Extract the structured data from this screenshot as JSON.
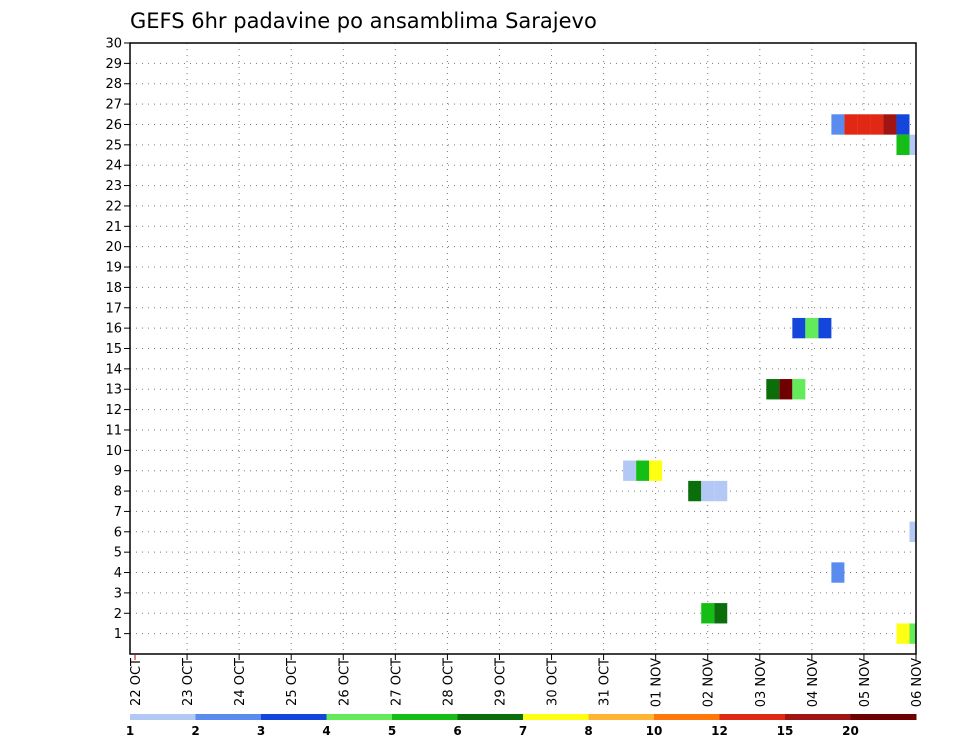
{
  "chart_data": {
    "type": "heatmap",
    "title": "GEFS 6hr padavine po ansamblima Sarajevo",
    "xlabel": "",
    "ylabel": "",
    "x_ticks": [
      "22 OCT",
      "23 OCT",
      "24 OCT",
      "25 OCT",
      "26 OCT",
      "27 OCT",
      "28 OCT",
      "29 OCT",
      "30 OCT",
      "31 OCT",
      "01 NOV",
      "02 NOV",
      "03 NOV",
      "04 NOV",
      "05 NOV",
      "06 NOV"
    ],
    "xlim_days": [
      0,
      15
    ],
    "ylim": [
      0,
      30
    ],
    "y_ticks": [
      1,
      2,
      3,
      4,
      5,
      6,
      7,
      8,
      9,
      10,
      11,
      12,
      13,
      14,
      15,
      16,
      17,
      18,
      19,
      20,
      21,
      22,
      23,
      24,
      25,
      26,
      27,
      28,
      29,
      30
    ],
    "grid": true,
    "colorbar": {
      "labels": [
        "1",
        "2",
        "3",
        "4",
        "5",
        "6",
        "7",
        "8",
        "10",
        "12",
        "15",
        "20"
      ],
      "colors": [
        "#b4c8f5",
        "#5a8cf0",
        "#1446dc",
        "#64eb5a",
        "#14be14",
        "#0a6e0a",
        "#ffff14",
        "#ffb432",
        "#ff780a",
        "#e12814",
        "#a01414",
        "#6e0000"
      ]
    },
    "cells": [
      {
        "member": 26,
        "day": 13.5,
        "value": 2
      },
      {
        "member": 26,
        "day": 13.75,
        "value": 12
      },
      {
        "member": 26,
        "day": 14.0,
        "value": 12
      },
      {
        "member": 26,
        "day": 14.25,
        "value": 12
      },
      {
        "member": 26,
        "day": 14.5,
        "value": 15
      },
      {
        "member": 26,
        "day": 14.75,
        "value": 3
      },
      {
        "member": 25,
        "day": 14.75,
        "value": 5
      },
      {
        "member": 25,
        "day": 15.0,
        "value": 1
      },
      {
        "member": 16,
        "day": 12.75,
        "value": 3
      },
      {
        "member": 16,
        "day": 13.0,
        "value": 4
      },
      {
        "member": 16,
        "day": 13.25,
        "value": 3
      },
      {
        "member": 13,
        "day": 12.25,
        "value": 6
      },
      {
        "member": 13,
        "day": 12.5,
        "value": 20
      },
      {
        "member": 13,
        "day": 12.75,
        "value": 4
      },
      {
        "member": 9,
        "day": 9.5,
        "value": 1
      },
      {
        "member": 9,
        "day": 9.75,
        "value": 5
      },
      {
        "member": 9,
        "day": 10.0,
        "value": 7
      },
      {
        "member": 8,
        "day": 10.75,
        "value": 6
      },
      {
        "member": 8,
        "day": 11.0,
        "value": 1
      },
      {
        "member": 8,
        "day": 11.25,
        "value": 1
      },
      {
        "member": 6,
        "day": 15.0,
        "value": 1
      },
      {
        "member": 4,
        "day": 13.5,
        "value": 2
      },
      {
        "member": 2,
        "day": 11.0,
        "value": 5
      },
      {
        "member": 2,
        "day": 11.25,
        "value": 6
      },
      {
        "member": 1,
        "day": 14.75,
        "value": 7
      },
      {
        "member": 1,
        "day": 15.0,
        "value": 4
      },
      {
        "member": 1,
        "day": 15.25,
        "value": 7
      }
    ]
  }
}
